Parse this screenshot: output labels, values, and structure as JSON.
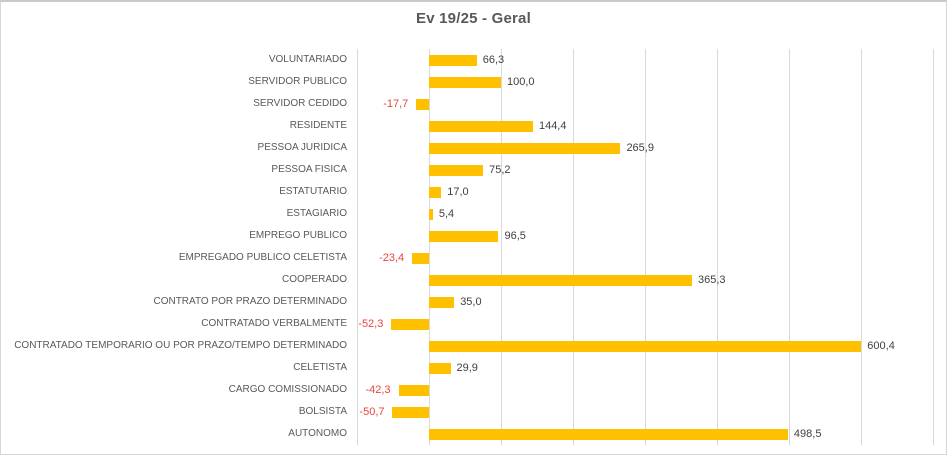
{
  "chart_data": {
    "type": "bar",
    "orientation": "horizontal",
    "title": "Ev 19/25 - Geral",
    "categories": [
      "VOLUNTARIADO",
      "SERVIDOR PUBLICO",
      "SERVIDOR CEDIDO",
      "RESIDENTE",
      "PESSOA JURIDICA",
      "PESSOA FISICA",
      "ESTATUTARIO",
      "ESTAGIARIO",
      "EMPREGO PUBLICO",
      "EMPREGADO PUBLICO CELETISTA",
      "COOPERADO",
      "CONTRATO POR PRAZO DETERMINADO",
      "CONTRATADO VERBALMENTE",
      "CONTRATADO TEMPORARIO OU POR PRAZO/TEMPO DETERMINADO",
      "CELETISTA",
      "CARGO COMISSIONADO",
      "BOLSISTA",
      "AUTONOMO"
    ],
    "values": [
      66.3,
      100.0,
      -17.7,
      144.4,
      265.9,
      75.2,
      17.0,
      5.4,
      96.5,
      -23.4,
      365.3,
      35.0,
      -52.3,
      600.4,
      29.9,
      -42.3,
      -50.7,
      498.5
    ],
    "value_labels": [
      "66,3",
      "100,0",
      "-17,7",
      "144,4",
      "265,9",
      "75,2",
      "17,0",
      "5,4",
      "96,5",
      "-23,4",
      "365,3",
      "35,0",
      "-52,3",
      "600,4",
      "29,9",
      "-42,3",
      "-50,7",
      "498,5"
    ],
    "xlim": [
      -100,
      700
    ],
    "gridline_step": 100,
    "grid": true,
    "legend": "none",
    "bar_color": "#FFC000",
    "positive_label_color": "#3f3f3f",
    "negative_label_color": "#e8453c",
    "category_label_color": "#595959",
    "title_color": "#595959",
    "gridline_color": "#d9d9d9"
  }
}
